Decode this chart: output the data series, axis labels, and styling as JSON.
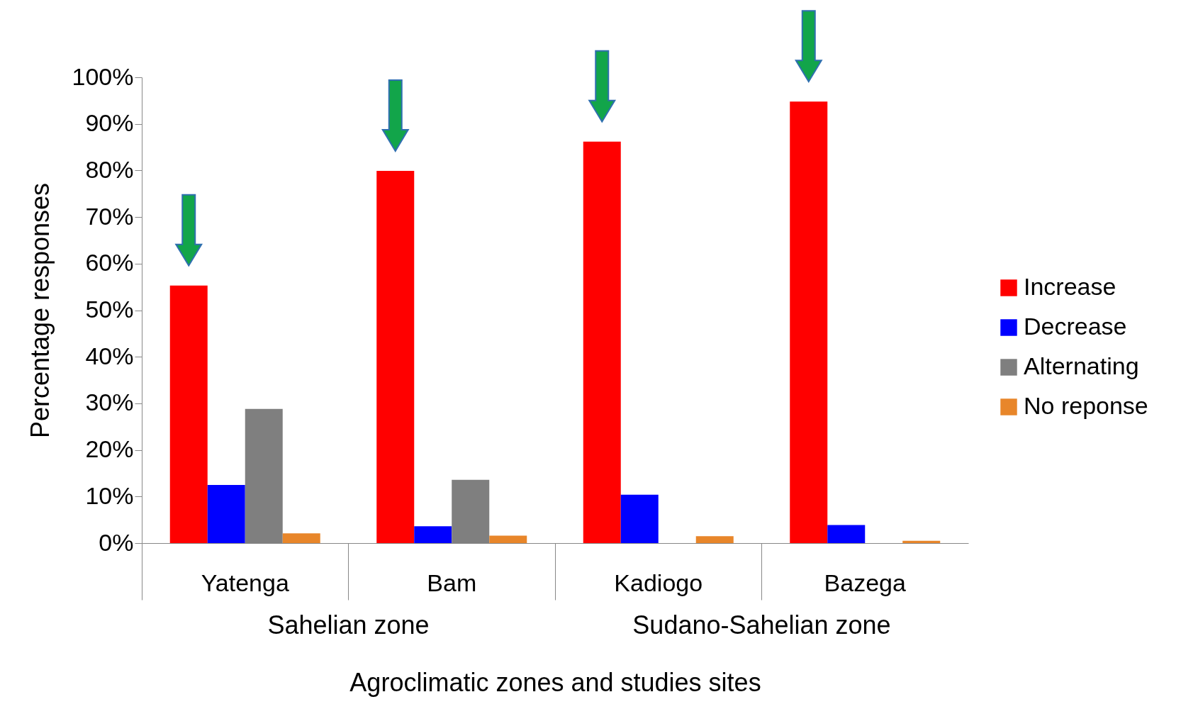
{
  "chart_data": {
    "type": "bar",
    "xlabel": "Agroclimatic zones and studies sites",
    "ylabel": "Percentage responses",
    "categories": [
      "Yatenga",
      "Bam",
      "Kadiogo",
      "Bazega"
    ],
    "series": [
      {
        "name": "Increase",
        "color": "#ff0000",
        "values": [
          55.3,
          79.9,
          86.2,
          94.8
        ]
      },
      {
        "name": "Decrease",
        "color": "#0000ff",
        "values": [
          12.5,
          3.6,
          10.4,
          3.9
        ]
      },
      {
        "name": "Alternating",
        "color": "#7f7f7f",
        "values": [
          28.8,
          13.6,
          null,
          null
        ]
      },
      {
        "name": "No reponse",
        "color": "#e8862a",
        "values": [
          2.1,
          1.6,
          1.5,
          0.5
        ]
      }
    ],
    "ylim": [
      0,
      100
    ],
    "yticks": [
      {
        "value": 0,
        "label": "0%"
      },
      {
        "value": 10,
        "label": "10%"
      },
      {
        "value": 20,
        "label": "20%"
      },
      {
        "value": 30,
        "label": "30%"
      },
      {
        "value": 40,
        "label": "40%"
      },
      {
        "value": 50,
        "label": "50%"
      },
      {
        "value": 60,
        "label": "60%"
      },
      {
        "value": 70,
        "label": "70%"
      },
      {
        "value": 80,
        "label": "80%"
      },
      {
        "value": 90,
        "label": "90%"
      },
      {
        "value": 100,
        "label": "100%"
      }
    ],
    "annotations": [
      "Sahelian zone",
      "Sudano-Sahelian zone"
    ],
    "legend": "right",
    "grid": false
  }
}
